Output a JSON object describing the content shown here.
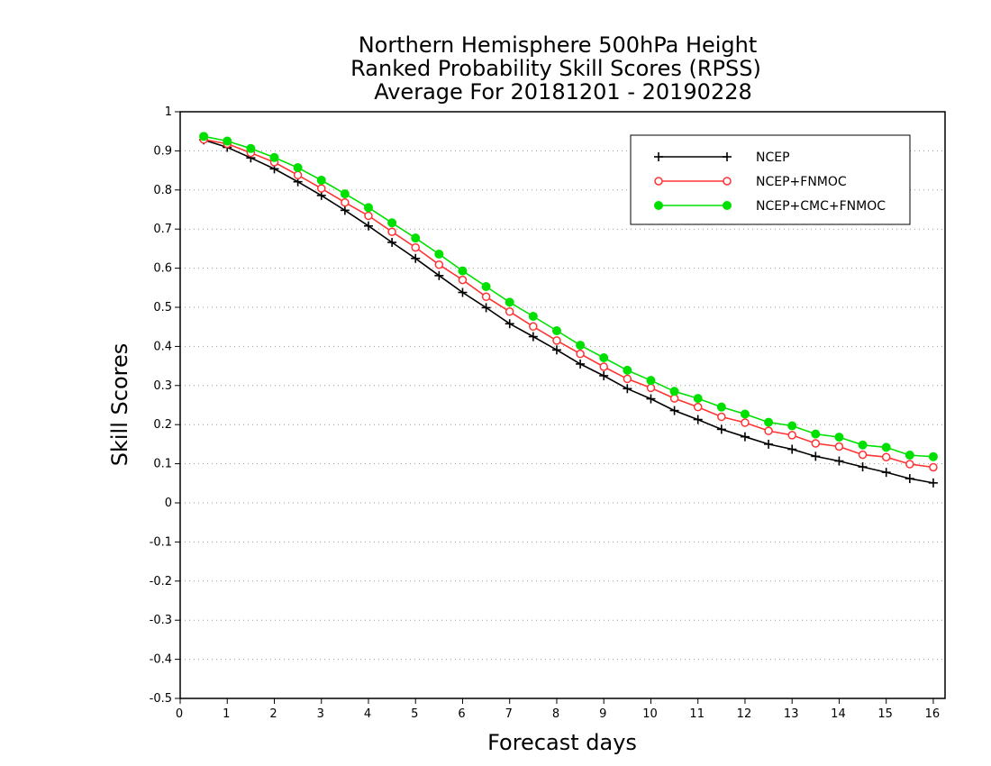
{
  "chart_data": {
    "type": "line",
    "title_lines": [
      "Northern Hemisphere 500hPa Height",
      "Ranked Probability Skill Scores (RPSS)",
      "Average For 20181201 - 20190228"
    ],
    "xlabel": "Forecast days",
    "ylabel": "Skill Scores",
    "xlim": [
      0,
      16.25
    ],
    "ylim": [
      -0.5,
      1
    ],
    "xticks": [
      "0",
      "1",
      "2",
      "3",
      "4",
      "5",
      "6",
      "7",
      "8",
      "9",
      "10",
      "11",
      "12",
      "13",
      "14",
      "15",
      "16"
    ],
    "yticks": [
      "1",
      "0.9",
      "0.8",
      "0.7",
      "0.6",
      "0.5",
      "0.4",
      "0.3",
      "0.2",
      "0.1",
      "0",
      "-0.1",
      "-0.2",
      "-0.3",
      "-0.4",
      "-0.5"
    ],
    "grid": "horizontal dotted",
    "legend_position": "top-right",
    "x": [
      0.5,
      1,
      1.5,
      2,
      2.5,
      3,
      3.5,
      4,
      4.5,
      5,
      5.5,
      6,
      6.5,
      7,
      7.5,
      8,
      8.5,
      9,
      9.5,
      10,
      10.5,
      11,
      11.5,
      12,
      12.5,
      13,
      13.5,
      14,
      14.5,
      15,
      15.5,
      16
    ],
    "series": [
      {
        "name": "NCEP",
        "color": "#000000",
        "marker": "plus",
        "values": [
          0.928,
          0.909,
          0.882,
          0.854,
          0.821,
          0.786,
          0.748,
          0.708,
          0.666,
          0.625,
          0.581,
          0.538,
          0.499,
          0.458,
          0.425,
          0.391,
          0.355,
          0.325,
          0.292,
          0.266,
          0.236,
          0.213,
          0.188,
          0.169,
          0.15,
          0.137,
          0.119,
          0.107,
          0.092,
          0.078,
          0.062,
          0.051
        ]
      },
      {
        "name": "NCEP+FNMOC",
        "color": "#ff3333",
        "marker": "open-circle",
        "values": [
          0.929,
          0.918,
          0.895,
          0.871,
          0.838,
          0.804,
          0.768,
          0.734,
          0.693,
          0.653,
          0.609,
          0.57,
          0.527,
          0.489,
          0.451,
          0.415,
          0.381,
          0.348,
          0.317,
          0.294,
          0.267,
          0.245,
          0.22,
          0.205,
          0.184,
          0.173,
          0.152,
          0.144,
          0.123,
          0.117,
          0.099,
          0.091
        ]
      },
      {
        "name": "NCEP+CMC+FNMOC",
        "color": "#00e000",
        "marker": "filled-circle",
        "values": [
          0.937,
          0.925,
          0.906,
          0.883,
          0.857,
          0.825,
          0.79,
          0.755,
          0.716,
          0.677,
          0.636,
          0.593,
          0.553,
          0.513,
          0.477,
          0.44,
          0.403,
          0.371,
          0.339,
          0.313,
          0.285,
          0.267,
          0.245,
          0.227,
          0.206,
          0.197,
          0.176,
          0.168,
          0.148,
          0.142,
          0.122,
          0.118
        ]
      }
    ]
  }
}
